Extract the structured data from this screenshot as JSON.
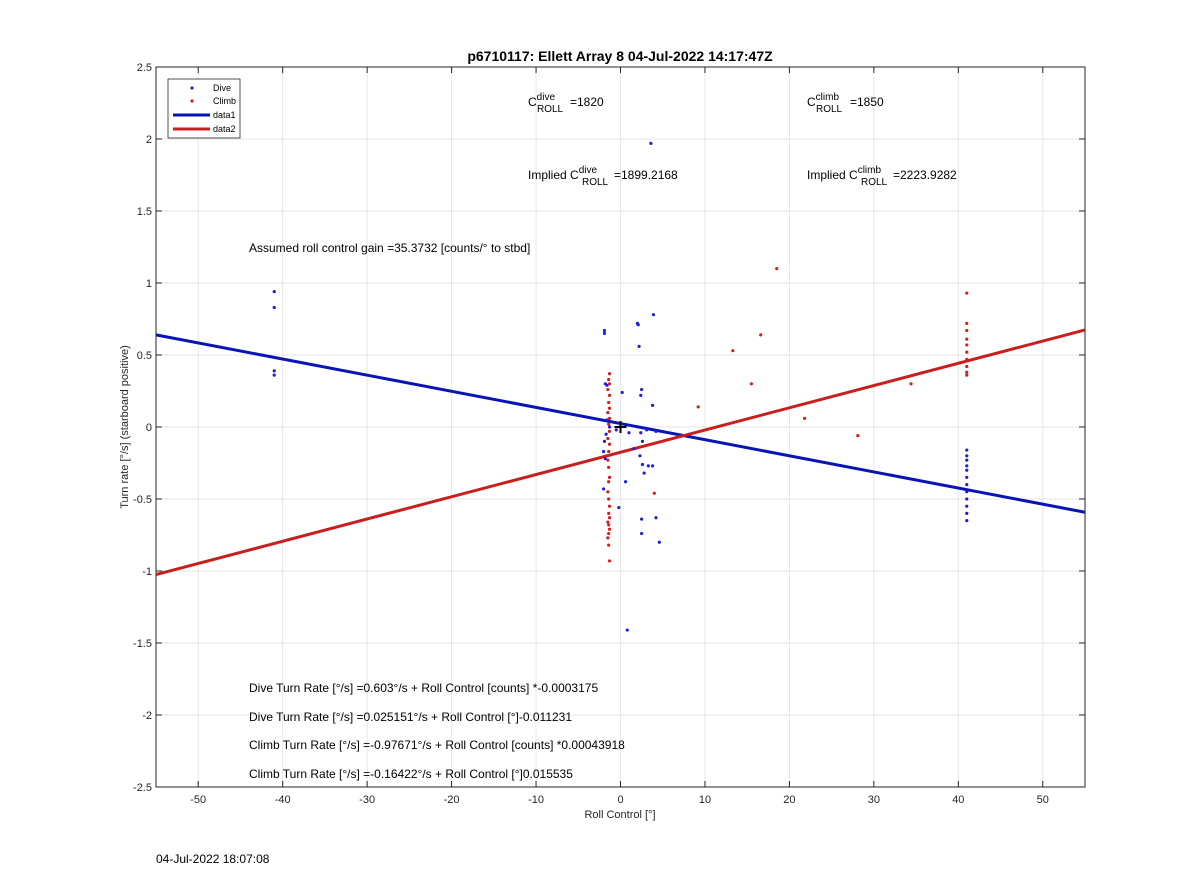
{
  "chart_data": {
    "type": "scatter",
    "title": "p6710117: Ellett Array 8 04-Jul-2022 14:17:47Z",
    "xlabel": "Roll Control [°]",
    "ylabel": "Turn rate [°/s] (starboard positive)",
    "xlim": [
      -55,
      55
    ],
    "ylim": [
      -2.5,
      2.5
    ],
    "x_ticks": [
      -50,
      -40,
      -30,
      -20,
      -10,
      0,
      10,
      20,
      30,
      40,
      50
    ],
    "x_tick_labels": [
      "-50",
      "-40",
      "-30",
      "-20",
      "-10",
      "0",
      "10",
      "20",
      "30",
      "40",
      "50"
    ],
    "y_ticks": [
      -2.5,
      -2,
      -1.5,
      -1,
      -0.5,
      0,
      0.5,
      1,
      1.5,
      2,
      2.5
    ],
    "y_tick_labels": [
      "-2.5",
      "-2",
      "-1.5",
      "-1",
      "-0.5",
      "0",
      "0.5",
      "1",
      "1.5",
      "2",
      "2.5"
    ],
    "grid": true,
    "legend_position": "top-left",
    "legend": [
      "Dive",
      "Climb",
      "data1",
      "data2"
    ],
    "colors": {
      "dive": "#1f1fd6",
      "climb": "#d41f1f",
      "data1": "#0a14b4",
      "data2": "#c81e1e"
    },
    "series": [
      {
        "name": "Dive",
        "kind": "points",
        "points": [
          [
            -41,
            0.94
          ],
          [
            -41,
            0.83
          ],
          [
            -41,
            0.39
          ],
          [
            -41,
            0.36
          ],
          [
            3.6,
            1.97
          ],
          [
            3.9,
            0.78
          ],
          [
            2,
            0.72
          ],
          [
            2.1,
            0.71
          ],
          [
            2.2,
            0.56
          ],
          [
            -1.9,
            0.67
          ],
          [
            -1.9,
            0.65
          ],
          [
            -1.6,
            0.29
          ],
          [
            -1.8,
            0.3
          ],
          [
            2.5,
            0.26
          ],
          [
            2.4,
            0.22
          ],
          [
            0.2,
            0.24
          ],
          [
            3.8,
            0.15
          ],
          [
            -1.6,
            0.05
          ],
          [
            -1.3,
            0.0
          ],
          [
            -1.7,
            -0.05
          ],
          [
            -1.9,
            -0.1
          ],
          [
            -2,
            -0.17
          ],
          [
            -1.8,
            -0.22
          ],
          [
            0,
            0.02
          ],
          [
            -0.5,
            -0.02
          ],
          [
            1,
            -0.04
          ],
          [
            2.4,
            -0.04
          ],
          [
            3.1,
            -0.02
          ],
          [
            4.2,
            -0.03
          ],
          [
            2.6,
            -0.1
          ],
          [
            1.6,
            -0.15
          ],
          [
            2.3,
            -0.2
          ],
          [
            2.6,
            -0.26
          ],
          [
            3.3,
            -0.27
          ],
          [
            3.8,
            -0.27
          ],
          [
            2.8,
            -0.32
          ],
          [
            0.6,
            -0.38
          ],
          [
            -2,
            -0.43
          ],
          [
            -0.2,
            -0.56
          ],
          [
            2.5,
            -0.64
          ],
          [
            4.2,
            -0.63
          ],
          [
            2.5,
            -0.74
          ],
          [
            4.6,
            -0.8
          ],
          [
            0.8,
            -1.41
          ],
          [
            41,
            -0.16
          ],
          [
            41,
            -0.2
          ],
          [
            41,
            -0.23
          ],
          [
            41,
            -0.27
          ],
          [
            41,
            -0.3
          ],
          [
            41,
            -0.35
          ],
          [
            41,
            -0.4
          ],
          [
            41,
            -0.45
          ],
          [
            41,
            -0.5
          ],
          [
            41,
            -0.55
          ],
          [
            41,
            -0.6
          ],
          [
            41,
            -0.65
          ]
        ]
      },
      {
        "name": "Climb",
        "kind": "points",
        "points": [
          [
            18.5,
            1.1
          ],
          [
            16.6,
            0.64
          ],
          [
            13.3,
            0.53
          ],
          [
            15.5,
            0.3
          ],
          [
            9.2,
            0.14
          ],
          [
            21.8,
            0.06
          ],
          [
            28.1,
            -0.06
          ],
          [
            34.4,
            0.3
          ],
          [
            4,
            -0.46
          ],
          [
            41,
            0.93
          ],
          [
            41,
            0.72
          ],
          [
            41,
            0.67
          ],
          [
            41,
            0.61
          ],
          [
            41,
            0.57
          ],
          [
            41,
            0.52
          ],
          [
            41,
            0.47
          ],
          [
            41,
            0.42
          ],
          [
            41,
            0.38
          ],
          [
            41,
            0.36
          ],
          [
            -1.3,
            0.37
          ],
          [
            -1.4,
            0.33
          ],
          [
            -1.3,
            0.3
          ],
          [
            -1.5,
            0.26
          ],
          [
            -1.3,
            0.22
          ],
          [
            -1.4,
            0.17
          ],
          [
            -1.3,
            0.13
          ],
          [
            -1.5,
            0.1
          ],
          [
            -1.3,
            0.06
          ],
          [
            -1.4,
            0.02
          ],
          [
            -1.3,
            -0.03
          ],
          [
            -1.5,
            -0.08
          ],
          [
            -1.3,
            -0.12
          ],
          [
            -1.4,
            -0.17
          ],
          [
            -1.5,
            -0.23
          ],
          [
            -1.4,
            -0.28
          ],
          [
            -1.3,
            -0.35
          ],
          [
            -1.4,
            -0.38
          ],
          [
            -1.5,
            -0.45
          ],
          [
            -1.4,
            -0.5
          ],
          [
            -1.3,
            -0.55
          ],
          [
            -1.4,
            -0.6
          ],
          [
            -1.3,
            -0.63
          ],
          [
            -1.5,
            -0.66
          ],
          [
            -1.4,
            -0.68
          ],
          [
            -1.3,
            -0.71
          ],
          [
            -1.4,
            -0.74
          ],
          [
            -1.5,
            -0.77
          ],
          [
            -1.4,
            -0.82
          ],
          [
            -1.3,
            -0.93
          ]
        ]
      },
      {
        "name": "data1",
        "kind": "line",
        "points": [
          [
            -55,
            0.64
          ],
          [
            55,
            -0.592
          ]
        ]
      },
      {
        "name": "data2",
        "kind": "line",
        "points": [
          [
            -55,
            -1.025
          ],
          [
            55,
            0.674
          ]
        ]
      }
    ],
    "marker_point": [
      0,
      0
    ],
    "annotations": {
      "c_dive": {
        "prefix": "C",
        "sup": "dive",
        "sub": "ROLL",
        "value": "=1820"
      },
      "c_climb": {
        "prefix": "C",
        "sup": "climb",
        "sub": "ROLL",
        "value": "=1850"
      },
      "implied_dive": {
        "prefix": "Implied C",
        "sup": "dive",
        "sub": "ROLL",
        "value": "=1899.2168"
      },
      "implied_climb": {
        "prefix": "Implied C",
        "sup": "climb",
        "sub": "ROLL",
        "value": "=2223.9282"
      },
      "gain": "Assumed roll control gain =35.3732 [counts/° to stbd]",
      "eq1": "Dive Turn Rate [°/s] =0.603°/s + Roll Control [counts] *-0.0003175",
      "eq2": "Dive Turn Rate [°/s] =0.025151°/s + Roll Control [°]-0.011231",
      "eq3": "Climb Turn Rate [°/s] =-0.97671°/s + Roll Control [counts] *0.00043918",
      "eq4": "Climb Turn Rate [°/s] =-0.16422°/s + Roll Control [°]0.015535"
    }
  },
  "footer": {
    "timestamp": "04-Jul-2022 18:07:08"
  }
}
